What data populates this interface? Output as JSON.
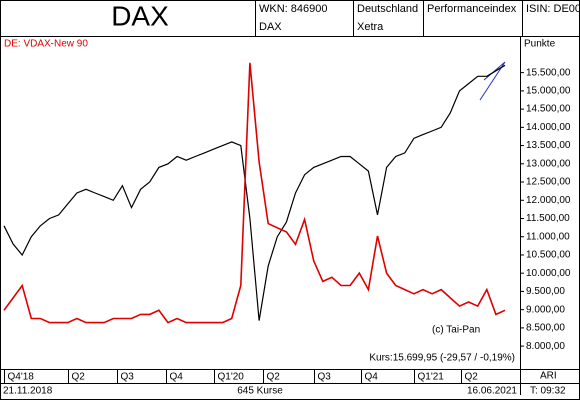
{
  "chart_data": {
    "type": "line",
    "title": "DAX",
    "header": {
      "wkn": "WKN: 846900",
      "country": "Deutschland",
      "exchange": "Xetra",
      "kind": "Performanceindex",
      "isin": "ISIN: DE00"
    },
    "y_label": "Punkte",
    "series": [
      {
        "name": "DAX",
        "color": "#000000",
        "values": [
          11300,
          10800,
          10500,
          11000,
          11300,
          11500,
          11600,
          11900,
          12200,
          12300,
          12200,
          12100,
          12000,
          12400,
          11800,
          12300,
          12500,
          12900,
          13000,
          13200,
          13100,
          13200,
          13300,
          13400,
          13500,
          13600,
          13500,
          11500,
          8700,
          10200,
          11000,
          11400,
          12200,
          12700,
          12900,
          13000,
          13100,
          13200,
          13200,
          13000,
          12800,
          11600,
          12900,
          13200,
          13300,
          13700,
          13800,
          13900,
          14000,
          14400,
          15000,
          15200,
          15400,
          15400,
          15550,
          15700
        ]
      },
      {
        "name": "DE: VDAX-New 90",
        "color": "#e00000",
        "axis": "y2",
        "values": [
          24,
          27,
          30,
          22,
          22,
          21,
          21,
          21,
          22,
          21,
          21,
          21,
          22,
          22,
          22,
          23,
          23,
          24,
          21,
          22,
          21,
          21,
          21,
          21,
          21,
          22,
          30,
          84,
          60,
          45,
          44,
          43,
          40,
          46,
          36,
          31,
          32,
          30,
          30,
          33,
          29,
          42,
          33,
          30,
          29,
          28,
          29,
          28,
          29,
          27,
          25,
          26,
          25,
          29,
          23,
          24
        ]
      }
    ],
    "xlim": [
      0,
      55
    ],
    "xticks": [
      {
        "value": 0,
        "label": "Q4'18"
      },
      {
        "value": 7,
        "label": "Q2"
      },
      {
        "value": 12.4,
        "label": "Q3"
      },
      {
        "value": 17.8,
        "label": "Q4"
      },
      {
        "value": 23.1,
        "label": "Q1'20"
      },
      {
        "value": 28.4,
        "label": "Q2"
      },
      {
        "value": 34,
        "label": "Q3"
      },
      {
        "value": 39.2,
        "label": "Q4"
      },
      {
        "value": 45,
        "label": "Q1'21"
      },
      {
        "value": 50.2,
        "label": "Q2"
      }
    ],
    "ylim": [
      7400,
      16450
    ],
    "yticks": [
      {
        "value": 8000,
        "label": "8.000,00"
      },
      {
        "value": 8500,
        "label": "8.500,00"
      },
      {
        "value": 9000,
        "label": "9.000,00"
      },
      {
        "value": 9500,
        "label": "9.500,00"
      },
      {
        "value": 10000,
        "label": "10.000,00"
      },
      {
        "value": 10500,
        "label": "10.500,00"
      },
      {
        "value": 11000,
        "label": "11.000,00"
      },
      {
        "value": 11500,
        "label": "11.500,00"
      },
      {
        "value": 12000,
        "label": "12.000,00"
      },
      {
        "value": 12500,
        "label": "12.500,00"
      },
      {
        "value": 13000,
        "label": "13.000,00"
      },
      {
        "value": 13500,
        "label": "13.500,00"
      },
      {
        "value": 14000,
        "label": "14.000,00"
      },
      {
        "value": 14500,
        "label": "14.500,00"
      },
      {
        "value": 15000,
        "label": "15.000,00"
      },
      {
        "value": 15500,
        "label": "15.500,00"
      }
    ],
    "y2lim": [
      10,
      90
    ],
    "annotations": {
      "copyright": "(c) Tai-Pan",
      "quote": "Kurs:15.699,95 (-29,57 / -0,19%)"
    },
    "footer": {
      "start": "21.11.2018",
      "count": "645 Kurse",
      "end": "16.06.2021",
      "tool": "ARI",
      "time": "T: 09:32"
    }
  }
}
